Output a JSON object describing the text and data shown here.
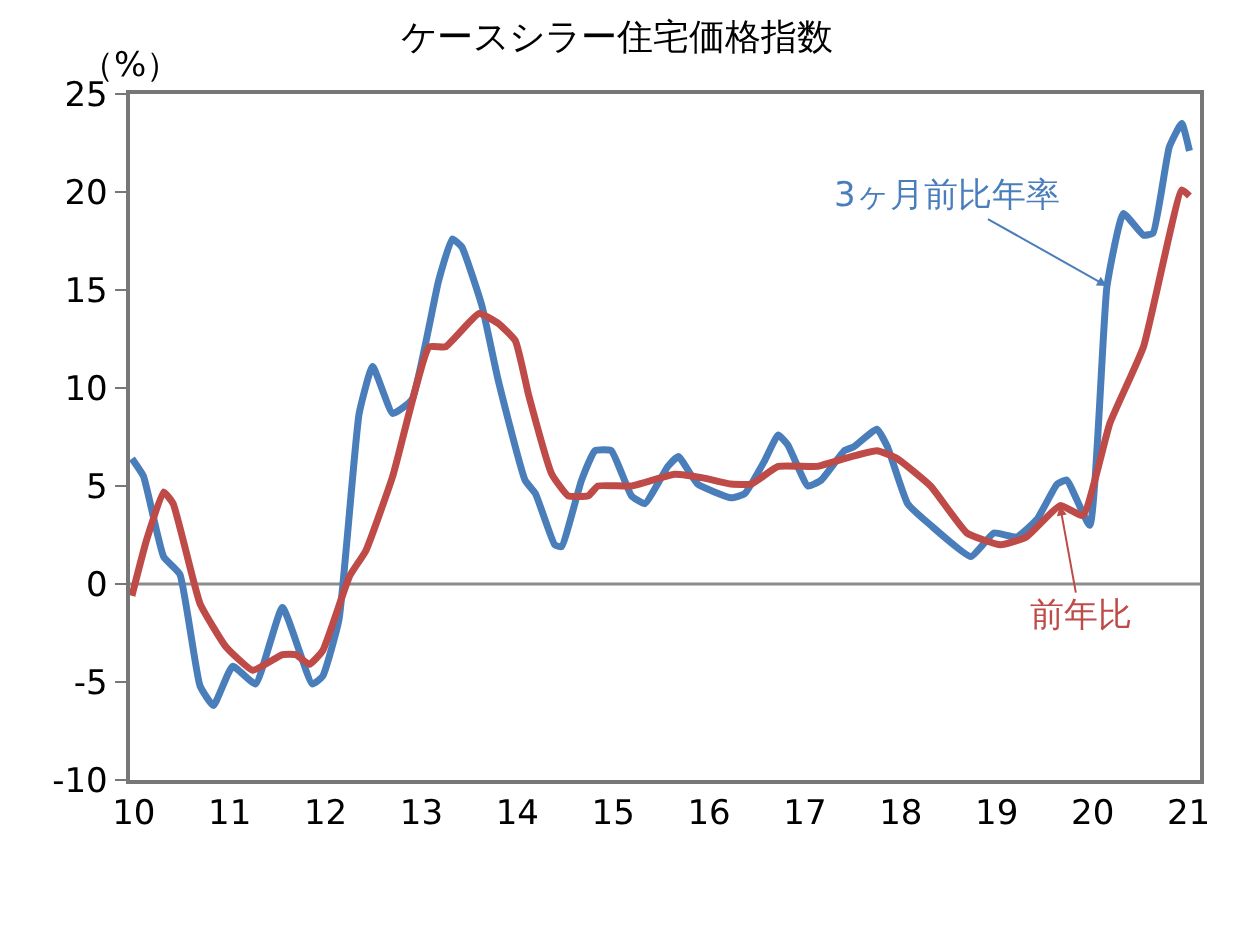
{
  "chart_data": {
    "type": "line",
    "title": "ケースシラー住宅価格指数",
    "ylabel": "（%）",
    "xlim": [
      9.96,
      21.12
    ],
    "xticks": [
      10,
      11,
      12,
      13,
      14,
      15,
      16,
      17,
      18,
      19,
      20,
      21
    ],
    "ylim": [
      -10,
      25
    ],
    "yticks": [
      -10,
      -5,
      0,
      5,
      10,
      15,
      20,
      25
    ],
    "grid": false,
    "legend": false,
    "marker": "none",
    "line_style": "solid",
    "ref_lines": [
      {
        "axis": "y",
        "value": 0,
        "label": null,
        "color": "#8c8c8c"
      }
    ],
    "series": [
      {
        "name": "3ヶ月前比年率",
        "color": "#4a7ebb",
        "x": [
          9.98,
          10.1,
          10.31,
          10.48,
          10.69,
          10.83,
          11.03,
          11.27,
          11.55,
          11.86,
          11.97,
          12.14,
          12.35,
          12.49,
          12.7,
          12.9,
          13.18,
          13.32,
          13.42,
          13.63,
          13.8,
          14.08,
          14.19,
          14.39,
          14.46,
          14.67,
          14.81,
          14.98,
          15.19,
          15.33,
          15.57,
          15.68,
          15.88,
          16.23,
          16.37,
          16.58,
          16.72,
          16.82,
          17.03,
          17.17,
          17.41,
          17.51,
          17.75,
          17.86,
          18.07,
          18.31,
          18.73,
          18.97,
          19.21,
          19.42,
          19.63,
          19.73,
          19.97,
          20.15,
          20.32,
          20.53,
          20.63,
          20.8,
          20.93,
          21.01
        ],
        "values": [
          6.4,
          5.5,
          1.4,
          0.5,
          -5.2,
          -6.2,
          -4.2,
          -5.1,
          -1.2,
          -5.1,
          -4.7,
          -1.8,
          8.7,
          11.1,
          8.7,
          9.4,
          15.5,
          17.6,
          17.2,
          14.2,
          10.4,
          5.3,
          4.6,
          2.0,
          1.9,
          5.3,
          6.8,
          6.8,
          4.5,
          4.1,
          6.0,
          6.5,
          5.1,
          4.4,
          4.6,
          6.3,
          7.6,
          7.1,
          5.0,
          5.3,
          6.8,
          7.0,
          7.9,
          7.0,
          4.1,
          3.0,
          1.4,
          2.6,
          2.4,
          3.3,
          5.1,
          5.3,
          3.0,
          15.2,
          18.9,
          17.8,
          17.9,
          22.3,
          23.5,
          22.1
        ]
      },
      {
        "name": "前年比",
        "color": "#be4b48",
        "x": [
          9.98,
          10.13,
          10.31,
          10.41,
          10.69,
          10.96,
          11.24,
          11.55,
          11.69,
          11.83,
          11.97,
          12.25,
          12.42,
          12.7,
          13.08,
          13.25,
          13.6,
          13.8,
          13.98,
          14.12,
          14.36,
          14.53,
          14.74,
          14.84,
          15.19,
          15.64,
          15.95,
          16.23,
          16.44,
          16.72,
          17.13,
          17.41,
          17.75,
          17.96,
          18.31,
          18.69,
          19.04,
          19.31,
          19.66,
          19.9,
          20.18,
          20.53,
          20.93,
          21.01
        ],
        "values": [
          -0.6,
          2.2,
          4.7,
          4.1,
          -1.0,
          -3.2,
          -4.4,
          -3.6,
          -3.6,
          -4.1,
          -3.4,
          0.4,
          1.7,
          5.5,
          12.1,
          12.1,
          13.8,
          13.3,
          12.4,
          9.6,
          5.6,
          4.5,
          4.5,
          5.0,
          5.0,
          5.6,
          5.4,
          5.1,
          5.1,
          6.0,
          6.0,
          6.4,
          6.8,
          6.4,
          5.0,
          2.6,
          2.0,
          2.4,
          4.0,
          3.5,
          8.2,
          12.1,
          20.1,
          19.8
        ]
      }
    ]
  }
}
